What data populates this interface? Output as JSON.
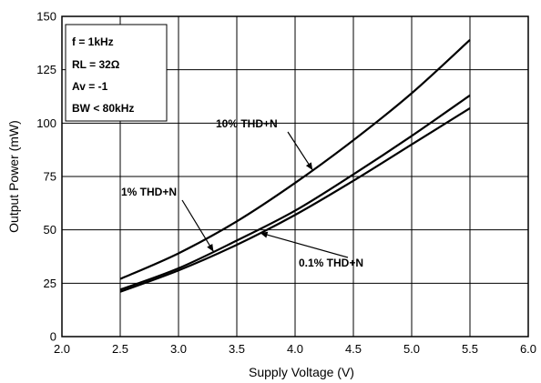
{
  "chart_data": {
    "type": "line",
    "title": "",
    "xlabel": "Supply Voltage (V)",
    "ylabel": "Output Power (mW)",
    "xlim": [
      2.0,
      6.0
    ],
    "ylim": [
      0,
      150
    ],
    "x_ticks": [
      2.0,
      2.5,
      3.0,
      3.5,
      4.0,
      4.5,
      5.0,
      5.5,
      6.0
    ],
    "x_tick_labels": [
      "2.0",
      "2.5",
      "3.0",
      "3.5",
      "4.0",
      "4.5",
      "5.0",
      "5.5",
      "6.0"
    ],
    "y_ticks": [
      0,
      25,
      50,
      75,
      100,
      125,
      150
    ],
    "y_tick_labels": [
      "0",
      "25",
      "50",
      "75",
      "100",
      "125",
      "150"
    ],
    "grid": true,
    "legend": "none",
    "conditions": [
      "f = 1kHz",
      "RL = 32Ω",
      "Av = -1",
      "BW < 80kHz"
    ],
    "series": [
      {
        "name": "10% THD+N",
        "x": [
          2.5,
          3.0,
          3.5,
          4.0,
          4.5,
          5.0,
          5.5
        ],
        "y": [
          27,
          39,
          54,
          72,
          92,
          114,
          139
        ]
      },
      {
        "name": "1% THD+N",
        "x": [
          2.5,
          3.0,
          3.5,
          4.0,
          4.5,
          5.0,
          5.5
        ],
        "y": [
          22,
          32,
          45,
          59,
          76,
          94,
          113
        ]
      },
      {
        "name": "0.1% THD+N",
        "x": [
          2.5,
          3.0,
          3.5,
          4.0,
          4.5,
          5.0,
          5.5
        ],
        "y": [
          21,
          31,
          43,
          57,
          73,
          90,
          107
        ]
      }
    ],
    "annotations": [
      {
        "text": "10% THD+N",
        "series": 0,
        "x": 4.15
      },
      {
        "text": "1% THD+N",
        "series": 1,
        "x": 3.3
      },
      {
        "text": "0.1% THD+N",
        "series": 2,
        "x": 3.7
      }
    ]
  }
}
